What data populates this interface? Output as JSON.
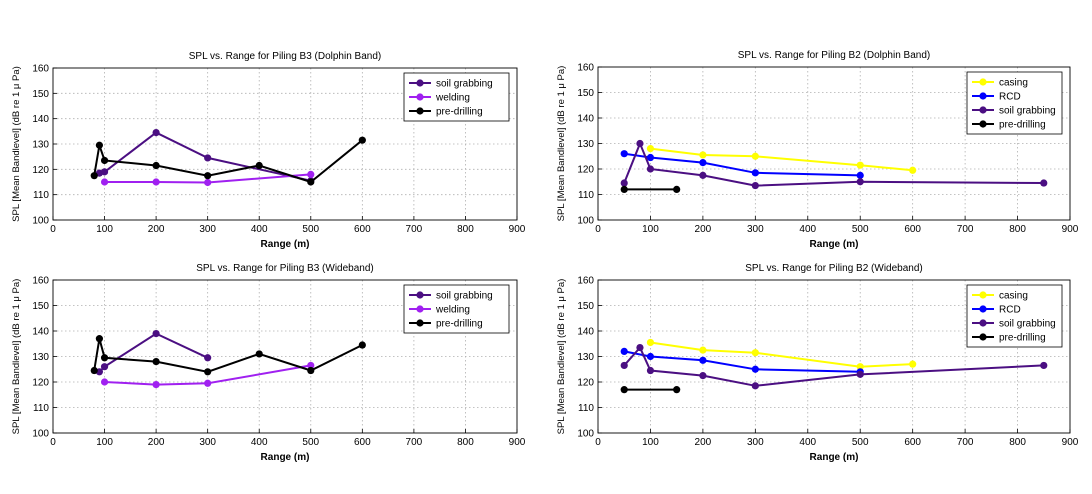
{
  "chart_data": [
    {
      "type": "line",
      "title": "SPL vs. Range for Piling B3 (Dolphin Band)",
      "xlabel": "Range (m)",
      "ylabel": "SPL [Mean Bandlevel] (dB re 1 μ Pa)",
      "xlim": [
        0,
        900
      ],
      "ylim": [
        100,
        160
      ],
      "xticks": [
        0,
        100,
        200,
        300,
        400,
        500,
        600,
        700,
        800,
        900
      ],
      "yticks": [
        100,
        110,
        120,
        130,
        140,
        150,
        160
      ],
      "grid": true,
      "legend": "top-right",
      "series": [
        {
          "name": "soil grabbing",
          "color": "#4b0f82",
          "x": [
            90,
            100,
            200,
            300,
            500
          ],
          "y": [
            118.5,
            119,
            134.5,
            124.5,
            115.5
          ]
        },
        {
          "name": "welding",
          "color": "#a020f0",
          "x": [
            100,
            200,
            300,
            500
          ],
          "y": [
            115,
            115,
            114.8,
            118
          ]
        },
        {
          "name": "pre-drilling",
          "color": "#000000",
          "x": [
            80,
            90,
            100,
            200,
            300,
            400,
            500,
            600
          ],
          "y": [
            117.5,
            129.5,
            123.5,
            121.5,
            117.5,
            121.5,
            115,
            131.5
          ]
        }
      ]
    },
    {
      "type": "line",
      "title": "SPL vs. Range for Piling B2 (Dolphin Band)",
      "xlabel": "Range (m)",
      "ylabel": "SPL [Mean Bandlevel] (dB re 1 μ Pa)",
      "xlim": [
        0,
        900
      ],
      "ylim": [
        100,
        160
      ],
      "xticks": [
        0,
        100,
        200,
        300,
        400,
        500,
        600,
        700,
        800,
        900
      ],
      "yticks": [
        100,
        110,
        120,
        130,
        140,
        150,
        160
      ],
      "grid": true,
      "legend": "top-right",
      "series": [
        {
          "name": "casing",
          "color": "#ffff00",
          "x": [
            100,
            200,
            300,
            500,
            600
          ],
          "y": [
            128,
            125.5,
            125,
            121.5,
            119.5
          ]
        },
        {
          "name": "RCD",
          "color": "#0000ff",
          "x": [
            50,
            100,
            200,
            300,
            500
          ],
          "y": [
            126,
            124.5,
            122.5,
            118.5,
            117.5
          ]
        },
        {
          "name": "soil grabbing",
          "color": "#4b0f82",
          "x": [
            50,
            80,
            100,
            200,
            300,
            500,
            850
          ],
          "y": [
            114.5,
            130,
            120,
            117.5,
            113.5,
            115,
            114.5
          ]
        },
        {
          "name": "pre-drilling",
          "color": "#000000",
          "x": [
            50,
            150
          ],
          "y": [
            112,
            112
          ]
        }
      ]
    },
    {
      "type": "line",
      "title": "SPL vs. Range for Piling B3 (Wideband)",
      "xlabel": "Range (m)",
      "ylabel": "SPL [Mean Bandlevel] (dB re 1 μ Pa)",
      "xlim": [
        0,
        900
      ],
      "ylim": [
        100,
        160
      ],
      "xticks": [
        0,
        100,
        200,
        300,
        400,
        500,
        600,
        700,
        800,
        900
      ],
      "yticks": [
        100,
        110,
        120,
        130,
        140,
        150,
        160
      ],
      "grid": true,
      "legend": "top-right",
      "series": [
        {
          "name": "soil grabbing",
          "color": "#4b0f82",
          "x": [
            90,
            100,
            200,
            300
          ],
          "y": [
            124,
            126,
            139,
            129.5
          ]
        },
        {
          "name": "welding",
          "color": "#a020f0",
          "x": [
            100,
            200,
            300,
            500
          ],
          "y": [
            120,
            119,
            119.5,
            126.5
          ]
        },
        {
          "name": "pre-drilling",
          "color": "#000000",
          "x": [
            80,
            90,
            100,
            200,
            300,
            400,
            500,
            600
          ],
          "y": [
            124.5,
            137,
            129.5,
            128,
            124,
            131,
            124.5,
            134.5
          ]
        }
      ]
    },
    {
      "type": "line",
      "title": "SPL vs. Range for Piling B2 (Wideband)",
      "xlabel": "Range (m)",
      "ylabel": "SPL [Mean Bandlevel] (dB re 1 μ Pa)",
      "xlim": [
        0,
        900
      ],
      "ylim": [
        100,
        160
      ],
      "xticks": [
        0,
        100,
        200,
        300,
        400,
        500,
        600,
        700,
        800,
        900
      ],
      "yticks": [
        100,
        110,
        120,
        130,
        140,
        150,
        160
      ],
      "grid": true,
      "legend": "top-right",
      "series": [
        {
          "name": "casing",
          "color": "#ffff00",
          "x": [
            100,
            200,
            300,
            500,
            600
          ],
          "y": [
            135.5,
            132.5,
            131.5,
            126,
            127
          ]
        },
        {
          "name": "RCD",
          "color": "#0000ff",
          "x": [
            50,
            100,
            200,
            300,
            500
          ],
          "y": [
            132,
            130,
            128.5,
            125,
            124
          ]
        },
        {
          "name": "soil grabbing",
          "color": "#4b0f82",
          "x": [
            50,
            80,
            100,
            200,
            300,
            500,
            850
          ],
          "y": [
            126.5,
            133.5,
            124.5,
            122.5,
            118.5,
            123,
            126.5
          ]
        },
        {
          "name": "pre-drilling",
          "color": "#000000",
          "x": [
            50,
            150
          ],
          "y": [
            117,
            117
          ]
        }
      ]
    }
  ]
}
